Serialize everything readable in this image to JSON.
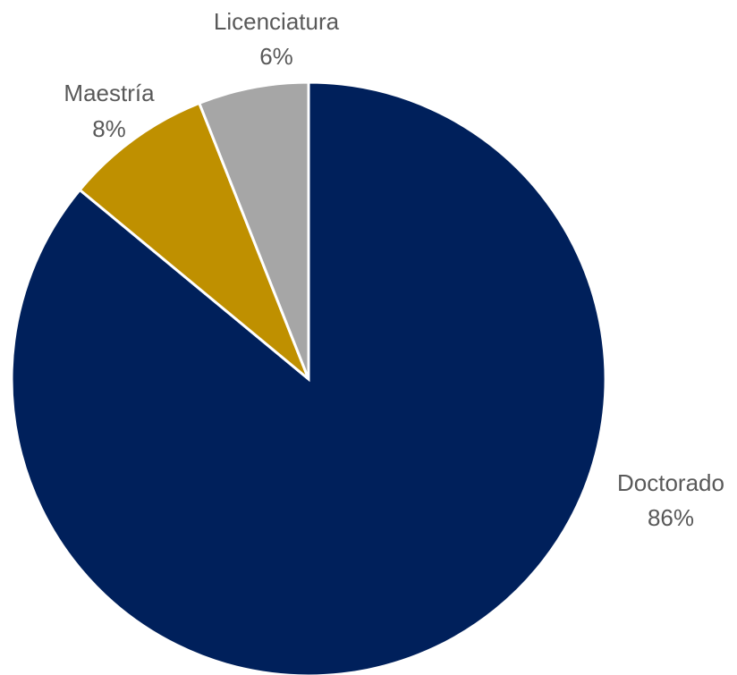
{
  "chart_data": {
    "type": "pie",
    "title": "",
    "categories": [
      "Doctorado",
      "Maestría",
      "Licenciatura"
    ],
    "values": [
      86,
      8,
      6
    ],
    "value_labels": [
      "86%",
      "8%",
      "6%"
    ],
    "colors": [
      "#00205b",
      "#bf9000",
      "#a6a6a6"
    ],
    "start_angle_deg": 0,
    "direction": "clockwise",
    "legend": "none"
  }
}
